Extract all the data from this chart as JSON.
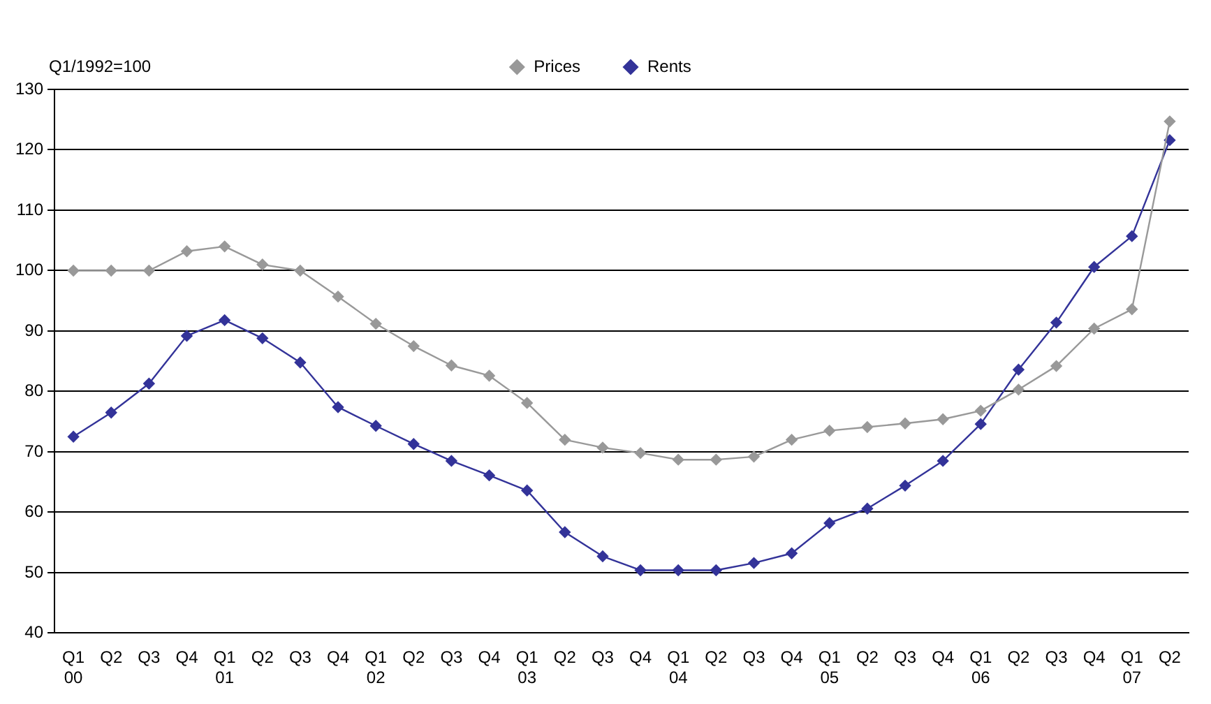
{
  "chart_data": {
    "type": "line",
    "ylabel": "Q1/1992=100",
    "categories": [
      "Q1\n00",
      "Q2",
      "Q3",
      "Q4",
      "Q1\n01",
      "Q2",
      "Q3",
      "Q4",
      "Q1\n02",
      "Q2",
      "Q3",
      "Q4",
      "Q1\n03",
      "Q2",
      "Q3",
      "Q4",
      "Q1\n04",
      "Q2",
      "Q3",
      "Q4",
      "Q1\n05",
      "Q2",
      "Q3",
      "Q4",
      "Q1\n06",
      "Q2",
      "Q3",
      "Q4",
      "Q1\n07",
      "Q2"
    ],
    "series": [
      {
        "name": "Prices",
        "color": "#999999",
        "values": [
          100,
          100,
          100,
          103.2,
          104,
          101,
          100,
          95.7,
          91.2,
          87.5,
          84.3,
          82.6,
          78.1,
          72,
          70.7,
          69.8,
          68.7,
          68.7,
          69.2,
          72,
          73.5,
          74.1,
          74.7,
          75.4,
          76.8,
          80.3,
          84.2,
          90.4,
          93.6,
          124.7
        ]
      },
      {
        "name": "Rents",
        "color": "#333399",
        "values": [
          72.5,
          76.5,
          81.3,
          89.2,
          91.8,
          88.8,
          84.8,
          77.4,
          74.3,
          71.3,
          68.5,
          66.1,
          63.6,
          56.7,
          52.7,
          50.4,
          50.4,
          50.4,
          51.6,
          53.2,
          58.2,
          60.6,
          64.4,
          68.5,
          74.6,
          83.6,
          91.4,
          100.6,
          105.7,
          121.6
        ]
      }
    ],
    "ylim": [
      40,
      130
    ],
    "yticks": [
      40,
      50,
      60,
      70,
      80,
      90,
      100,
      110,
      120,
      130
    ],
    "grid": "y",
    "legend": "top",
    "marker": "diamond",
    "line_style": "solid"
  }
}
